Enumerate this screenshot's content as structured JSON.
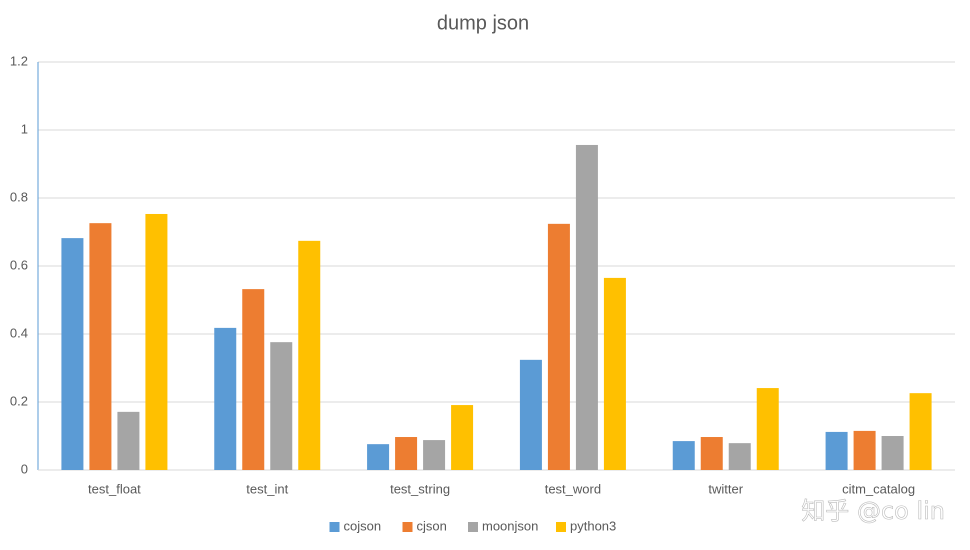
{
  "chart_data": {
    "type": "bar",
    "title": "dump json",
    "categories": [
      "test_float",
      "test_int",
      "test_string",
      "test_word",
      "twitter",
      "citm_catalog"
    ],
    "series": [
      {
        "name": "cojson",
        "color": "#5b9bd5",
        "values": [
          0.682,
          0.418,
          0.076,
          0.324,
          0.085,
          0.112
        ]
      },
      {
        "name": "cjson",
        "color": "#ed7d31",
        "values": [
          0.726,
          0.532,
          0.097,
          0.724,
          0.097,
          0.115
        ]
      },
      {
        "name": "moonjson",
        "color": "#a5a5a5",
        "values": [
          0.171,
          0.376,
          0.088,
          0.956,
          0.079,
          0.1
        ]
      },
      {
        "name": "python3",
        "color": "#ffc000",
        "values": [
          0.753,
          0.674,
          0.191,
          0.565,
          0.241,
          0.226
        ]
      }
    ],
    "ylim": [
      0,
      1.2
    ],
    "yticks": [
      0,
      0.2,
      0.4,
      0.6,
      0.8,
      1,
      1.2
    ],
    "grid": true,
    "legend": "bottom",
    "watermark": "知乎 @co lin"
  }
}
